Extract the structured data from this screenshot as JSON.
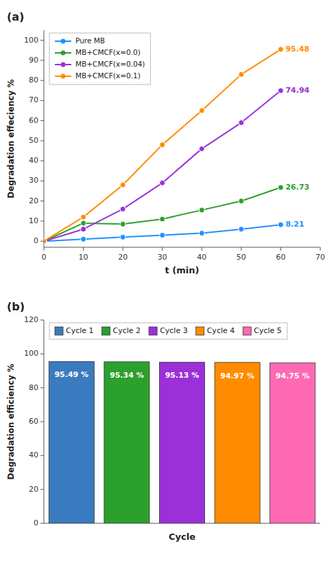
{
  "chart_data": [
    {
      "type": "line",
      "title": "(a)",
      "x_label": "t (min)",
      "y_label": "Degradation effeciency %",
      "xlim": [
        0,
        70
      ],
      "ylim": [
        -3,
        105
      ],
      "xticks": [
        0,
        10,
        20,
        30,
        40,
        50,
        60,
        70
      ],
      "yticks": [
        0,
        10,
        20,
        30,
        40,
        50,
        60,
        70,
        80,
        90,
        100
      ],
      "marker": "circle",
      "legend": "upper left",
      "grid": false,
      "series": [
        {
          "name": "Pure MB",
          "color": "#1e90ff",
          "x": [
            0,
            10,
            20,
            30,
            40,
            50,
            60
          ],
          "values": [
            0,
            1,
            2,
            3,
            4,
            6,
            8.21
          ],
          "value_labels": [
            null,
            null,
            null,
            null,
            null,
            null,
            "8.21"
          ]
        },
        {
          "name": "MB+CMCF(x=0.0)",
          "color": "#2ca02c",
          "x": [
            0,
            10,
            20,
            30,
            40,
            50,
            60
          ],
          "values": [
            0,
            9,
            8.5,
            11,
            15.5,
            20,
            26.73
          ],
          "value_labels": [
            null,
            null,
            null,
            null,
            null,
            null,
            "26.73"
          ]
        },
        {
          "name": "MB+CMCF(x=0.04)",
          "color": "#9b30d9",
          "x": [
            0,
            10,
            20,
            30,
            40,
            50,
            60
          ],
          "values": [
            0,
            6,
            16,
            29,
            46,
            59,
            74.94
          ],
          "value_labels": [
            null,
            null,
            null,
            null,
            null,
            null,
            "74.94"
          ]
        },
        {
          "name": "MB+CMCF(x=0.1)",
          "color": "#ff8c00",
          "x": [
            0,
            10,
            20,
            30,
            40,
            50,
            60
          ],
          "values": [
            0,
            12,
            28,
            48,
            65,
            83,
            95.48
          ],
          "value_labels": [
            null,
            null,
            null,
            null,
            null,
            null,
            "95.48"
          ]
        }
      ]
    },
    {
      "type": "bar",
      "title": "(b)",
      "x_label": "Cycle",
      "y_label": "Degradation efficiency %",
      "categories": [
        "Cycle 1",
        "Cycle 2",
        "Cycle 3",
        "Cycle 4",
        "Cycle 5"
      ],
      "values": [
        95.49,
        95.34,
        95.13,
        94.97,
        94.75
      ],
      "value_labels": [
        "95.49 %",
        "95.34 %",
        "95.13 %",
        "94.97 %",
        "94.75 %"
      ],
      "colors": [
        "#3a7bbf",
        "#2ca02c",
        "#9b30d9",
        "#ff8c00",
        "#ff69b4"
      ],
      "ylim": [
        0,
        120
      ],
      "yticks": [
        0,
        20,
        40,
        60,
        80,
        100,
        120
      ],
      "legend": "upper left",
      "data_labels": true,
      "tick_labels": "y",
      "grid": false
    }
  ]
}
